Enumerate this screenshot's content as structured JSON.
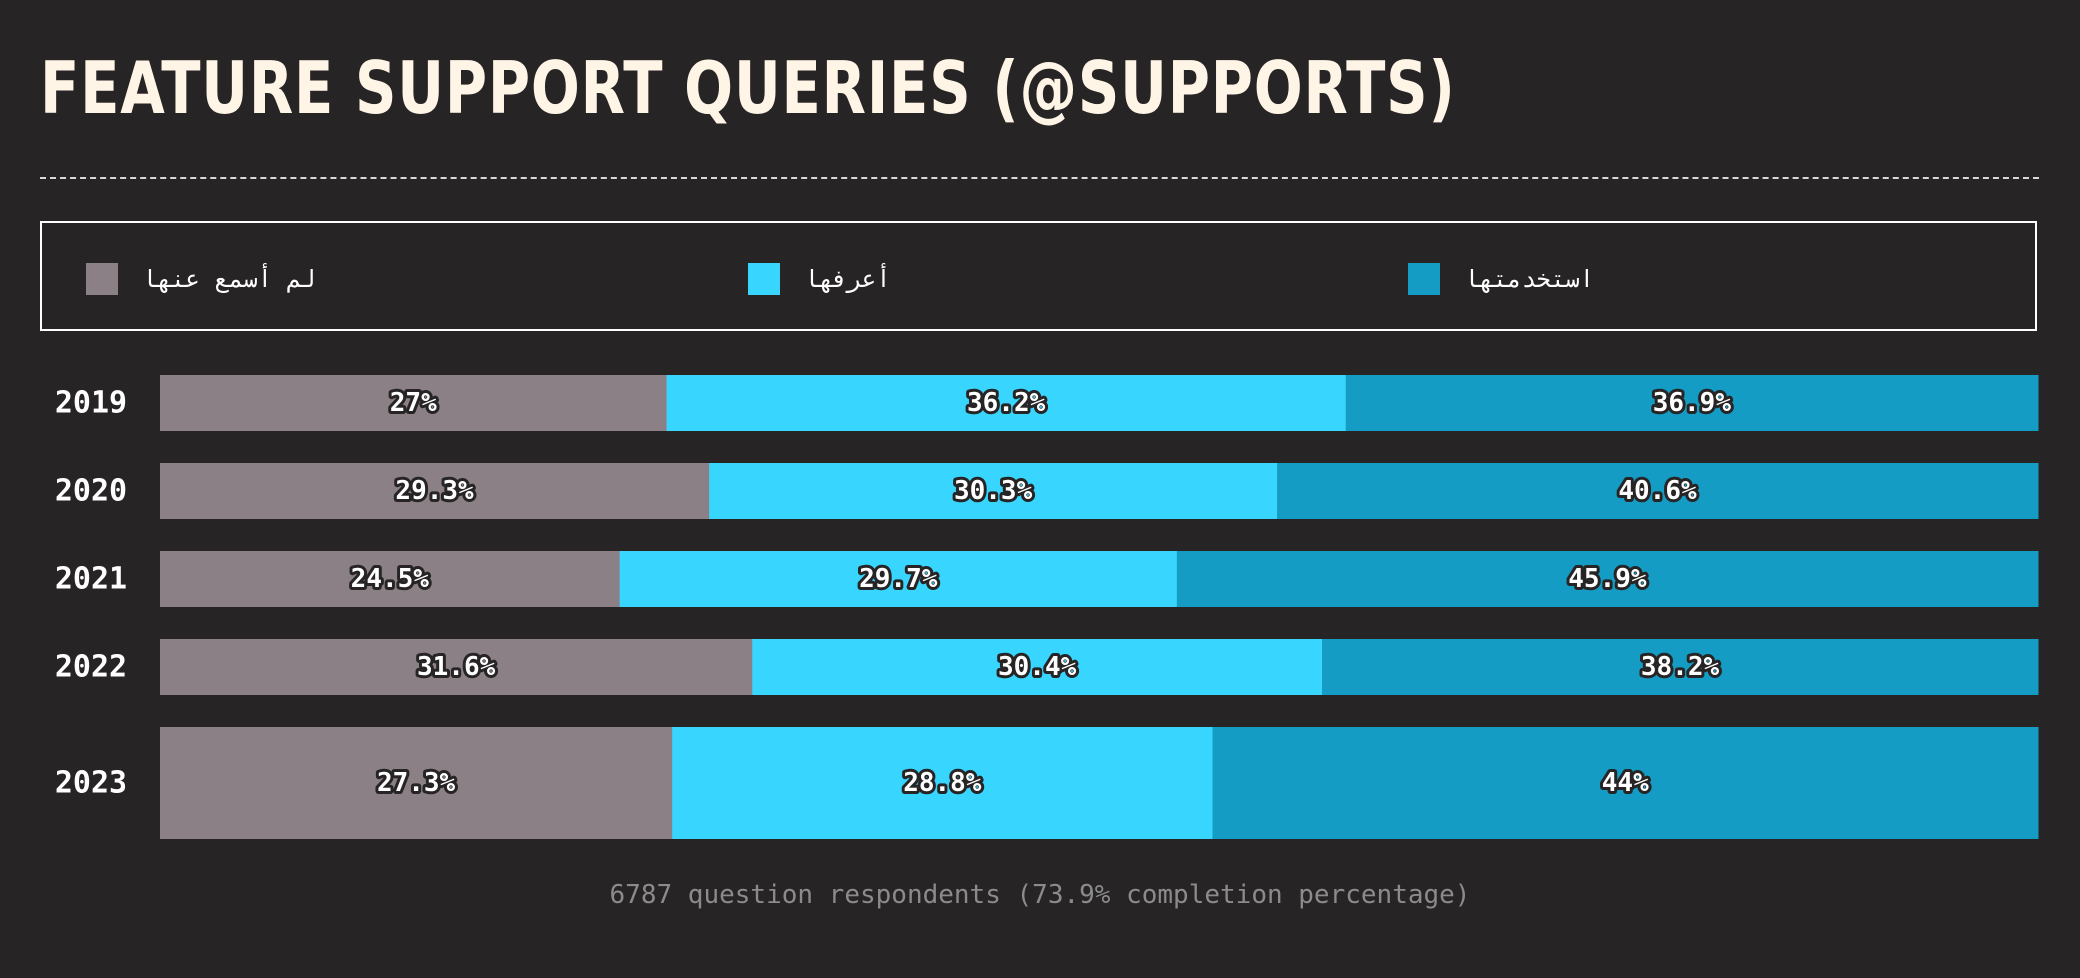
{
  "title": "FEATURE SUPPORT QUERIES (@SUPPORTS)",
  "footer": "6787 question respondents (73.9% completion percentage)",
  "chart_data": {
    "type": "bar",
    "orientation": "horizontal",
    "stacked": true,
    "normalized_percent": true,
    "categories": [
      "2019",
      "2020",
      "2021",
      "2022",
      "2023"
    ],
    "series": [
      {
        "name": "لم أسمع عنها",
        "color": "#8b8085",
        "values": [
          27,
          29.3,
          24.5,
          31.6,
          27.3
        ],
        "labels": [
          "27%",
          "29.3%",
          "24.5%",
          "31.6%",
          "27.3%"
        ]
      },
      {
        "name": "أعرفها",
        "color": "#38d5fe",
        "values": [
          36.2,
          30.3,
          29.7,
          30.4,
          28.8
        ],
        "labels": [
          "36.2%",
          "30.3%",
          "29.7%",
          "30.4%",
          "28.8%"
        ]
      },
      {
        "name": "استخدمتها",
        "color": "#149cc4",
        "values": [
          36.9,
          40.6,
          45.9,
          38.2,
          44
        ],
        "labels": [
          "36.9%",
          "40.6%",
          "45.9%",
          "38.2%",
          "44%"
        ]
      }
    ],
    "legend_position": "top",
    "grid": false,
    "highlight_category": "2023"
  }
}
